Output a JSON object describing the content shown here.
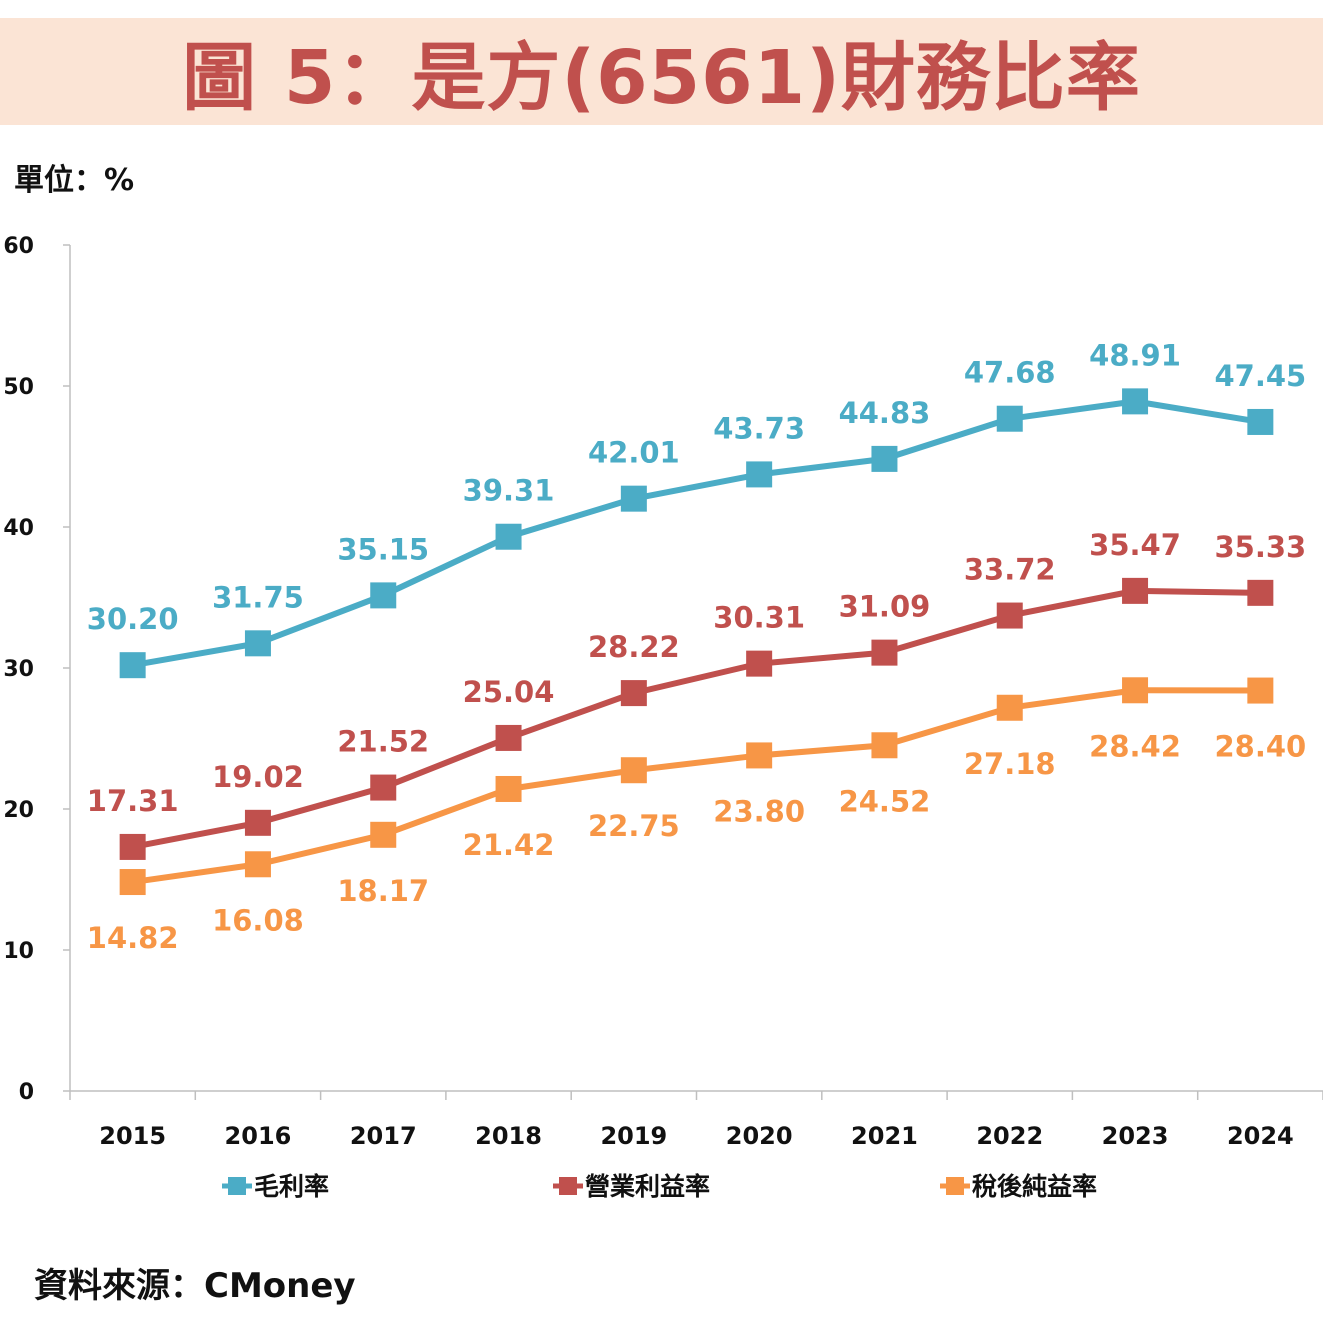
{
  "title": "圖 5：是方(6561)財務比率",
  "unit_label": "單位：%",
  "source": "資料來源：CMoney",
  "colors": {
    "gross": "#4bacc6",
    "operating": "#c0504d",
    "net": "#f79646",
    "title": "#c0504d",
    "title_bg": "#fbe4d5"
  },
  "chart_data": {
    "type": "line",
    "title": "圖 5：是方(6561)財務比率",
    "ylabel": "單位：%",
    "xlabel": "",
    "ylim": [
      0,
      60
    ],
    "yticks": [
      0,
      10,
      20,
      30,
      40,
      50,
      60
    ],
    "grid": false,
    "legend_position": "bottom",
    "categories": [
      "2015",
      "2016",
      "2017",
      "2018",
      "2019",
      "2020",
      "2021",
      "2022",
      "2023",
      "2024"
    ],
    "series": [
      {
        "name": "毛利率",
        "color": "#4bacc6",
        "label_pos": "above",
        "values": [
          30.2,
          31.75,
          35.15,
          39.31,
          42.01,
          43.73,
          44.83,
          47.68,
          48.91,
          47.45
        ]
      },
      {
        "name": "營業利益率",
        "color": "#c0504d",
        "label_pos": "above",
        "values": [
          17.31,
          19.02,
          21.52,
          25.04,
          28.22,
          30.31,
          31.09,
          33.72,
          35.47,
          35.33
        ]
      },
      {
        "name": "稅後純益率",
        "color": "#f79646",
        "label_pos": "below",
        "values": [
          14.82,
          16.08,
          18.17,
          21.42,
          22.75,
          23.8,
          24.52,
          27.18,
          28.42,
          28.4
        ]
      }
    ]
  }
}
